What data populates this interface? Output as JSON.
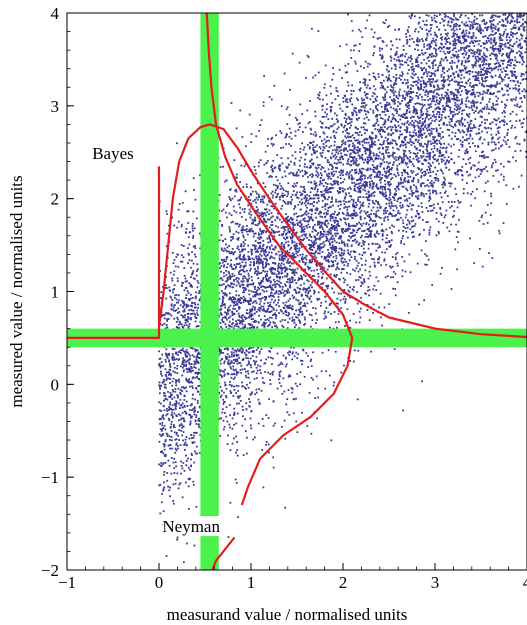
{
  "chart_data": {
    "type": "scatter",
    "title": "",
    "xlabel": "measurand value / normalised units",
    "ylabel": "measured  value / normalised units",
    "xlim": [
      -1,
      4
    ],
    "ylim": [
      -2,
      4
    ],
    "x_ticks": [
      -1,
      0,
      1,
      2,
      3,
      4
    ],
    "y_ticks": [
      -2,
      -1,
      0,
      1,
      2,
      3,
      4
    ],
    "x_tick_labels": [
      "−1",
      "0",
      "1",
      "2",
      "3",
      "4"
    ],
    "y_tick_labels": [
      "−2",
      "−1",
      "0",
      "1",
      "2",
      "3",
      "4"
    ],
    "grid": false,
    "scatter": {
      "description_free": true,
      "measurand_range": [
        0,
        4
      ],
      "point_count": 9000,
      "noise_sd": 0.7,
      "color": "#3a3a96"
    },
    "bands": [
      {
        "orientation": "vertical",
        "center": 0.55,
        "half_width": 0.1,
        "color": "#4cf24c"
      },
      {
        "orientation": "horizontal",
        "center": 0.5,
        "half_width": 0.1,
        "color": "#4cf24c"
      }
    ],
    "curves": {
      "color": "#e31d1d",
      "bayes": {
        "points": [
          [
            0,
            2.35
          ],
          [
            0,
            0.5
          ],
          [
            -1,
            0.5
          ],
          [
            0,
            0.5
          ],
          [
            0,
            0.62
          ],
          [
            0.05,
            1.0
          ],
          [
            0.1,
            1.5
          ],
          [
            0.15,
            2.0
          ],
          [
            0.22,
            2.4
          ],
          [
            0.32,
            2.65
          ],
          [
            0.45,
            2.77
          ],
          [
            0.55,
            2.8
          ],
          [
            0.7,
            2.75
          ],
          [
            0.85,
            2.55
          ],
          [
            1.0,
            2.3
          ],
          [
            1.2,
            2.0
          ],
          [
            1.4,
            1.72
          ],
          [
            1.6,
            1.45
          ],
          [
            1.8,
            1.22
          ],
          [
            2.0,
            1.0
          ],
          [
            2.25,
            0.85
          ],
          [
            2.5,
            0.72
          ],
          [
            3.0,
            0.6
          ],
          [
            3.5,
            0.54
          ],
          [
            4.0,
            0.51
          ]
        ]
      },
      "neyman": {
        "points": [
          [
            0.52,
            4.0
          ],
          [
            0.54,
            3.6
          ],
          [
            0.57,
            3.2
          ],
          [
            0.62,
            2.8
          ],
          [
            0.72,
            2.45
          ],
          [
            0.85,
            2.15
          ],
          [
            1.05,
            1.85
          ],
          [
            1.3,
            1.5
          ],
          [
            1.55,
            1.25
          ],
          [
            1.8,
            1.0
          ],
          [
            2.0,
            0.75
          ],
          [
            2.1,
            0.5
          ],
          [
            2.05,
            0.2
          ],
          [
            1.9,
            -0.1
          ],
          [
            1.65,
            -0.35
          ],
          [
            1.35,
            -0.55
          ],
          [
            1.1,
            -0.8
          ],
          [
            0.97,
            -1.1
          ],
          [
            0.9,
            -1.3
          ]
        ],
        "tail": [
          [
            0.82,
            -1.65
          ],
          [
            0.7,
            -1.8
          ],
          [
            0.62,
            -1.9
          ],
          [
            0.58,
            -2.0
          ]
        ]
      }
    },
    "annotations": [
      {
        "text": "Bayes",
        "x": -0.5,
        "y": 2.45
      },
      {
        "text": "Neyman",
        "x": 0.35,
        "y": -1.57
      }
    ]
  }
}
